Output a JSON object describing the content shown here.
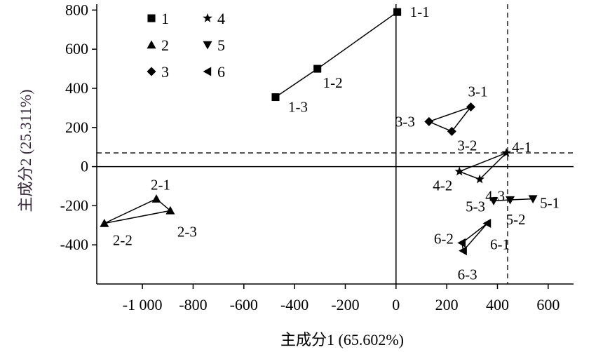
{
  "chart_data": {
    "type": "scatter",
    "xlabel": "主成分1 (65.602%)",
    "ylabel": "主成分2 (25.311%)",
    "xlim": [
      -1180,
      700
    ],
    "ylim": [
      -600,
      830
    ],
    "x_ticks": [
      -1000,
      -800,
      -600,
      -400,
      -200,
      0,
      200,
      400,
      600
    ],
    "x_tick_labels": [
      "-1 000",
      "-800",
      "-600",
      "-400",
      "-200",
      "0",
      "200",
      "400",
      "600"
    ],
    "y_ticks": [
      -400,
      -200,
      0,
      200,
      400,
      600,
      800
    ],
    "y_tick_labels": [
      "-400",
      "-200",
      "0",
      "200",
      "400",
      "600",
      "800"
    ],
    "reference_lines": {
      "x_zero": 0,
      "y_zero": 0,
      "x_dashed": 440,
      "y_dashed": 70
    },
    "legend": {
      "position": "top-left",
      "entries": [
        "1",
        "2",
        "3",
        "4",
        "5",
        "6"
      ]
    },
    "colors": {
      "marker": "#000000",
      "axis_title": "#3a2a3e"
    },
    "series": [
      {
        "name": "1",
        "marker": "square",
        "connect": "polyline",
        "points": [
          {
            "label": "1-1",
            "x": 5,
            "y": 790
          },
          {
            "label": "1-2",
            "x": -310,
            "y": 500
          },
          {
            "label": "1-3",
            "x": -475,
            "y": 355
          }
        ]
      },
      {
        "name": "2",
        "marker": "triangle-up",
        "connect": "closed",
        "points": [
          {
            "label": "2-1",
            "x": -945,
            "y": -165
          },
          {
            "label": "2-2",
            "x": -1150,
            "y": -290
          },
          {
            "label": "2-3",
            "x": -890,
            "y": -225
          }
        ]
      },
      {
        "name": "3",
        "marker": "diamond",
        "connect": "closed",
        "points": [
          {
            "label": "3-1",
            "x": 295,
            "y": 305
          },
          {
            "label": "3-2",
            "x": 220,
            "y": 180
          },
          {
            "label": "3-3",
            "x": 130,
            "y": 230
          }
        ]
      },
      {
        "name": "4",
        "marker": "star",
        "connect": "closed",
        "points": [
          {
            "label": "4-1",
            "x": 435,
            "y": 70
          },
          {
            "label": "4-2",
            "x": 250,
            "y": -25
          },
          {
            "label": "4-3",
            "x": 330,
            "y": -65
          }
        ]
      },
      {
        "name": "5",
        "marker": "triangle-down",
        "connect": "polyline",
        "points": [
          {
            "label": "5-1",
            "x": 540,
            "y": -165
          },
          {
            "label": "5-2",
            "x": 450,
            "y": -170
          },
          {
            "label": "5-3",
            "x": 385,
            "y": -175
          }
        ]
      },
      {
        "name": "6",
        "marker": "triangle-left",
        "connect": "closed",
        "points": [
          {
            "label": "6-1",
            "x": 360,
            "y": -290
          },
          {
            "label": "6-2",
            "x": 260,
            "y": -390
          },
          {
            "label": "6-3",
            "x": 265,
            "y": -430
          }
        ]
      }
    ]
  }
}
